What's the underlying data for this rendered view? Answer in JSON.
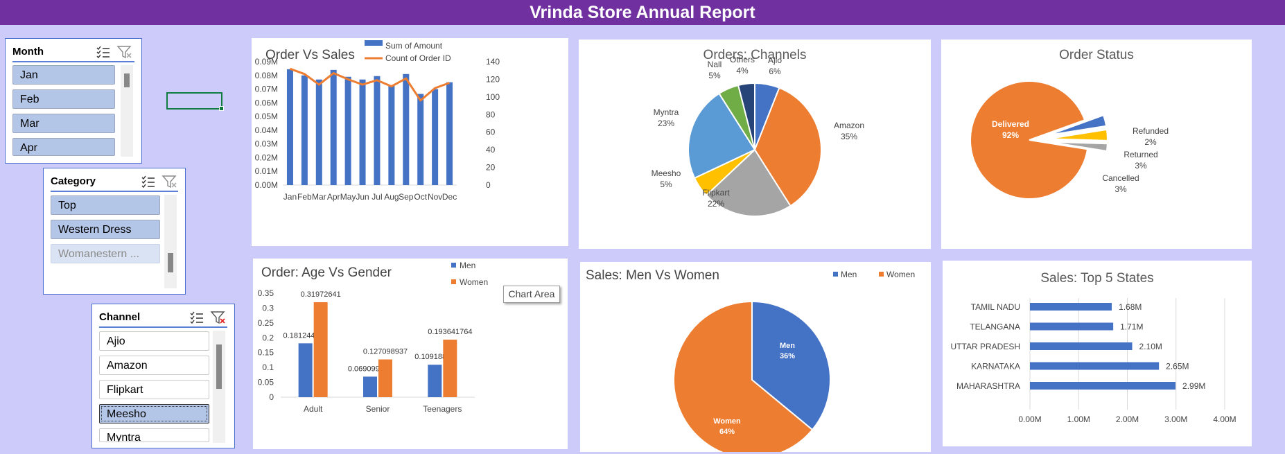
{
  "report_title": "Vrinda Store Annual Report",
  "slicers": {
    "month": {
      "title": "Month",
      "items": [
        {
          "label": "Jan",
          "state": "sel"
        },
        {
          "label": "Feb",
          "state": "sel"
        },
        {
          "label": "Mar",
          "state": "sel"
        },
        {
          "label": "Apr",
          "state": "sel"
        }
      ]
    },
    "category": {
      "title": "Category",
      "items": [
        {
          "label": "Top",
          "state": "sel"
        },
        {
          "label": "Western Dress",
          "state": "sel"
        },
        {
          "label": "Womanestern ...",
          "state": "nodata"
        }
      ]
    },
    "channel": {
      "title": "Channel",
      "items": [
        {
          "label": "Ajio",
          "state": "unsel"
        },
        {
          "label": "Amazon",
          "state": "unsel"
        },
        {
          "label": "Flipkart",
          "state": "unsel"
        },
        {
          "label": "Meesho",
          "state": "sel"
        },
        {
          "label": "Myntra",
          "state": "unsel"
        }
      ]
    }
  },
  "tooltip": "Chart Area",
  "colors": {
    "blue": "#4472c4",
    "orange": "#ed7d31",
    "gray": "#a5a5a5",
    "yellow": "#ffc000",
    "lightblue": "#5b9bd5",
    "green": "#70ad47",
    "navy": "#264478",
    "title_bar": "#7030a0",
    "background": "#cccbf9"
  },
  "chart_data": [
    {
      "id": "order_vs_sales",
      "type": "bar",
      "title": "Order Vs Sales",
      "categories": [
        "Jan",
        "Feb",
        "Mar",
        "Apr",
        "May",
        "Jun",
        "Jul",
        "Aug",
        "Sep",
        "Oct",
        "Nov",
        "Dec"
      ],
      "series": [
        {
          "name": "Sum of Amount",
          "type": "bar",
          "axis": "left",
          "values": [
            0.0845,
            0.08,
            0.077,
            0.084,
            0.079,
            0.077,
            0.0795,
            0.0725,
            0.081,
            0.0665,
            0.07,
            0.075
          ]
        },
        {
          "name": "Count of Order ID",
          "type": "line",
          "axis": "right",
          "values": [
            132,
            126,
            114,
            127,
            120,
            114,
            119,
            112,
            121,
            96,
            110,
            116
          ]
        }
      ],
      "left_ticks": [
        "0.00M",
        "0.01M",
        "0.02M",
        "0.03M",
        "0.04M",
        "0.05M",
        "0.06M",
        "0.07M",
        "0.08M",
        "0.09M"
      ],
      "right_ticks": [
        "0",
        "20",
        "40",
        "60",
        "80",
        "100",
        "120",
        "140"
      ],
      "ylim_left": [
        0,
        0.09
      ],
      "ylim_right": [
        0,
        140
      ],
      "legend": "top-right"
    },
    {
      "id": "orders_channels",
      "type": "pie",
      "title": "Orders: Channels",
      "slices": [
        {
          "label": "Ajio",
          "pct_label": "6%",
          "value": 6,
          "color": "#4472c4"
        },
        {
          "label": "Amazon",
          "pct_label": "35%",
          "value": 35,
          "color": "#ed7d31"
        },
        {
          "label": "Flipkart",
          "pct_label": "22%",
          "value": 22,
          "color": "#a5a5a5"
        },
        {
          "label": "Meesho",
          "pct_label": "5%",
          "value": 5,
          "color": "#ffc000"
        },
        {
          "label": "Myntra",
          "pct_label": "23%",
          "value": 23,
          "color": "#5b9bd5"
        },
        {
          "label": "Nall",
          "pct_label": "5%",
          "value": 5,
          "color": "#70ad47"
        },
        {
          "label": "Others",
          "pct_label": "4%",
          "value": 4,
          "color": "#264478"
        }
      ]
    },
    {
      "id": "order_status",
      "type": "pie",
      "title": "Order Status",
      "slices": [
        {
          "label": "Delivered",
          "pct_label": "92%",
          "value": 92,
          "color": "#ed7d31"
        },
        {
          "label": "Cancelled",
          "pct_label": "3%",
          "value": 3,
          "color": "#4472c4"
        },
        {
          "label": "Returned",
          "pct_label": "3%",
          "value": 3,
          "color": "#ffc000"
        },
        {
          "label": "Refunded",
          "pct_label": "2%",
          "value": 2,
          "color": "#a5a5a5"
        }
      ]
    },
    {
      "id": "age_vs_gender",
      "type": "bar",
      "title": "Order: Age Vs Gender",
      "categories": [
        "Adult",
        "Senior",
        "Teenagers"
      ],
      "series": [
        {
          "name": "Men",
          "values": [
            0.181244884,
            0.069099025,
            0.10918898
          ],
          "labels": [
            "0.181244884",
            "0.069099025",
            "0.10918898"
          ]
        },
        {
          "name": "Women",
          "values": [
            0.31972641,
            0.127098937,
            0.193641764
          ],
          "labels": [
            "0.31972641",
            "0.127098937",
            "0.193641764"
          ]
        }
      ],
      "y_ticks": [
        "0",
        "0.05",
        "0.1",
        "0.15",
        "0.2",
        "0.25",
        "0.3",
        "0.35"
      ],
      "ylim": [
        0,
        0.35
      ],
      "legend": "top-right"
    },
    {
      "id": "sales_men_women",
      "type": "pie",
      "title": "Sales: Men Vs Women",
      "slices": [
        {
          "label": "Men",
          "pct_label": "36%",
          "value": 36,
          "color": "#4472c4"
        },
        {
          "label": "Women",
          "pct_label": "64%",
          "value": 64,
          "color": "#ed7d31"
        }
      ],
      "legend": "top-right"
    },
    {
      "id": "top5_states",
      "type": "bar",
      "orientation": "horizontal",
      "title": "Sales: Top 5 States",
      "categories": [
        "TAMIL NADU",
        "TELANGANA",
        "UTTAR PRADESH",
        "KARNATAKA",
        "MAHARASHTRA"
      ],
      "values": [
        1.68,
        1.71,
        2.1,
        2.65,
        2.99
      ],
      "value_labels": [
        "1.68M",
        "1.71M",
        "2.10M",
        "2.65M",
        "2.99M"
      ],
      "x_ticks": [
        "0.00M",
        "1.00M",
        "2.00M",
        "3.00M",
        "4.00M"
      ],
      "xlim": [
        0,
        4
      ]
    }
  ]
}
